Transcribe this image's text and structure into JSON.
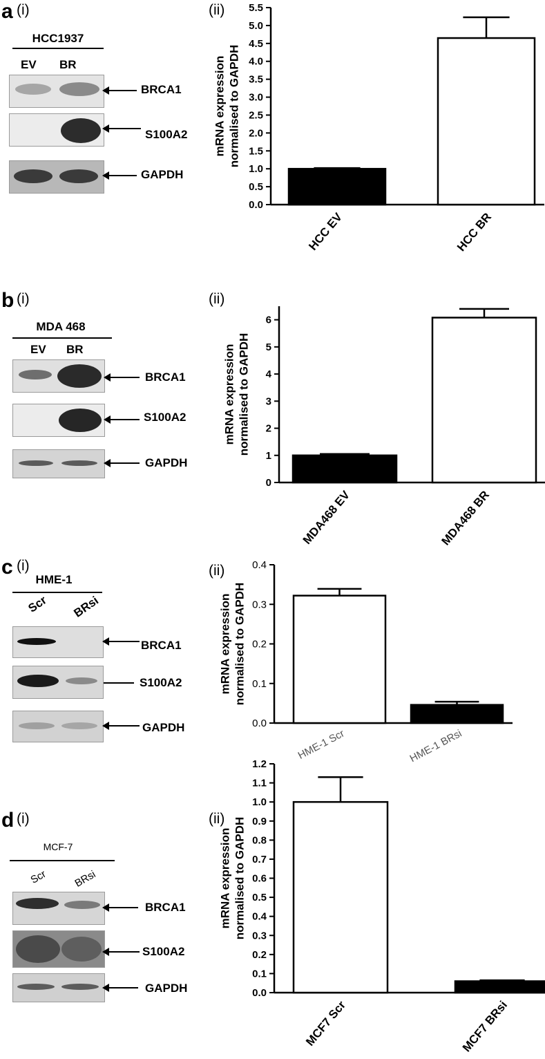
{
  "panels": [
    {
      "letter": "a",
      "blot_label": "(i)",
      "chart_label": "(ii)",
      "cell_line": "HCC1937",
      "lanes": [
        "EV",
        "BR"
      ],
      "rows": [
        {
          "label": "BRCA1"
        },
        {
          "label": "S100A2"
        },
        {
          "label": "GAPDH"
        }
      ]
    },
    {
      "letter": "b",
      "blot_label": "(i)",
      "chart_label": "(ii)",
      "cell_line": "MDA 468",
      "lanes": [
        "EV",
        "BR"
      ],
      "rows": [
        {
          "label": "BRCA1"
        },
        {
          "label": "S100A2"
        },
        {
          "label": "GAPDH"
        }
      ]
    },
    {
      "letter": "c",
      "blot_label": "(i)",
      "chart_label": "(ii)",
      "cell_line": "HME-1",
      "lanes": [
        "Scr",
        "BRsi"
      ],
      "rows": [
        {
          "label": "BRCA1"
        },
        {
          "label": "S100A2"
        },
        {
          "label": "GAPDH"
        }
      ]
    },
    {
      "letter": "d",
      "blot_label": "(i)",
      "chart_label": "(ii)",
      "cell_line": "MCF-7",
      "lanes": [
        "Scr",
        "BRsi"
      ],
      "rows": [
        {
          "label": "BRCA1"
        },
        {
          "label": "S100A2"
        },
        {
          "label": "GAPDH"
        }
      ]
    }
  ],
  "chart_data": [
    {
      "type": "bar",
      "categories": [
        "HCC EV",
        "HCC BR"
      ],
      "values": [
        1.0,
        4.65
      ],
      "errors": [
        0.02,
        0.58
      ],
      "bar_colors": [
        "#000000",
        "#ffffff"
      ],
      "ylabel": "mRNA expression\nnormalised to GAPDH",
      "ylim": [
        0,
        5.5
      ],
      "yticks": [
        "0.0",
        "0.5",
        "1.0",
        "1.5",
        "2.0",
        "2.5",
        "3.0",
        "3.5",
        "4.0",
        "4.5",
        "5.0",
        "5.5"
      ],
      "grid": false
    },
    {
      "type": "bar",
      "categories": [
        "MDA468 EV",
        "MDA468 BR"
      ],
      "values": [
        1.0,
        6.08
      ],
      "errors": [
        0.05,
        0.32
      ],
      "bar_colors": [
        "#000000",
        "#ffffff"
      ],
      "ylabel": "mRNA expression\nnormalised to  GAPDH",
      "ylim": [
        0,
        6.5
      ],
      "yticks": [
        "0",
        "1",
        "2",
        "3",
        "4",
        "5",
        "6"
      ],
      "grid": false
    },
    {
      "type": "bar",
      "categories": [
        "HME-1 Scr",
        "HME-1 BRsi"
      ],
      "values": [
        0.322,
        0.046
      ],
      "errors": [
        0.017,
        0.008
      ],
      "bar_colors": [
        "#ffffff",
        "#000000"
      ],
      "ylabel": "mRNA expression\nnormalised to GAPDH",
      "ylim": [
        0,
        0.4
      ],
      "yticks": [
        "0.0",
        "0.1",
        "0.2",
        "0.3",
        "0.4"
      ],
      "grid": false
    },
    {
      "type": "bar",
      "categories": [
        "MCF7 Scr",
        "MCF7 BRsi"
      ],
      "values": [
        1.0,
        0.06
      ],
      "errors": [
        0.13,
        0.005
      ],
      "bar_colors": [
        "#ffffff",
        "#000000"
      ],
      "ylabel": "mRNA expression\nnormalised to GAPDH",
      "ylim": [
        0,
        1.2
      ],
      "yticks": [
        "0.0",
        "0.1",
        "0.2",
        "0.3",
        "0.4",
        "0.5",
        "0.6",
        "0.7",
        "0.8",
        "0.9",
        "1.0",
        "1.1",
        "1.2"
      ],
      "grid": false
    }
  ]
}
